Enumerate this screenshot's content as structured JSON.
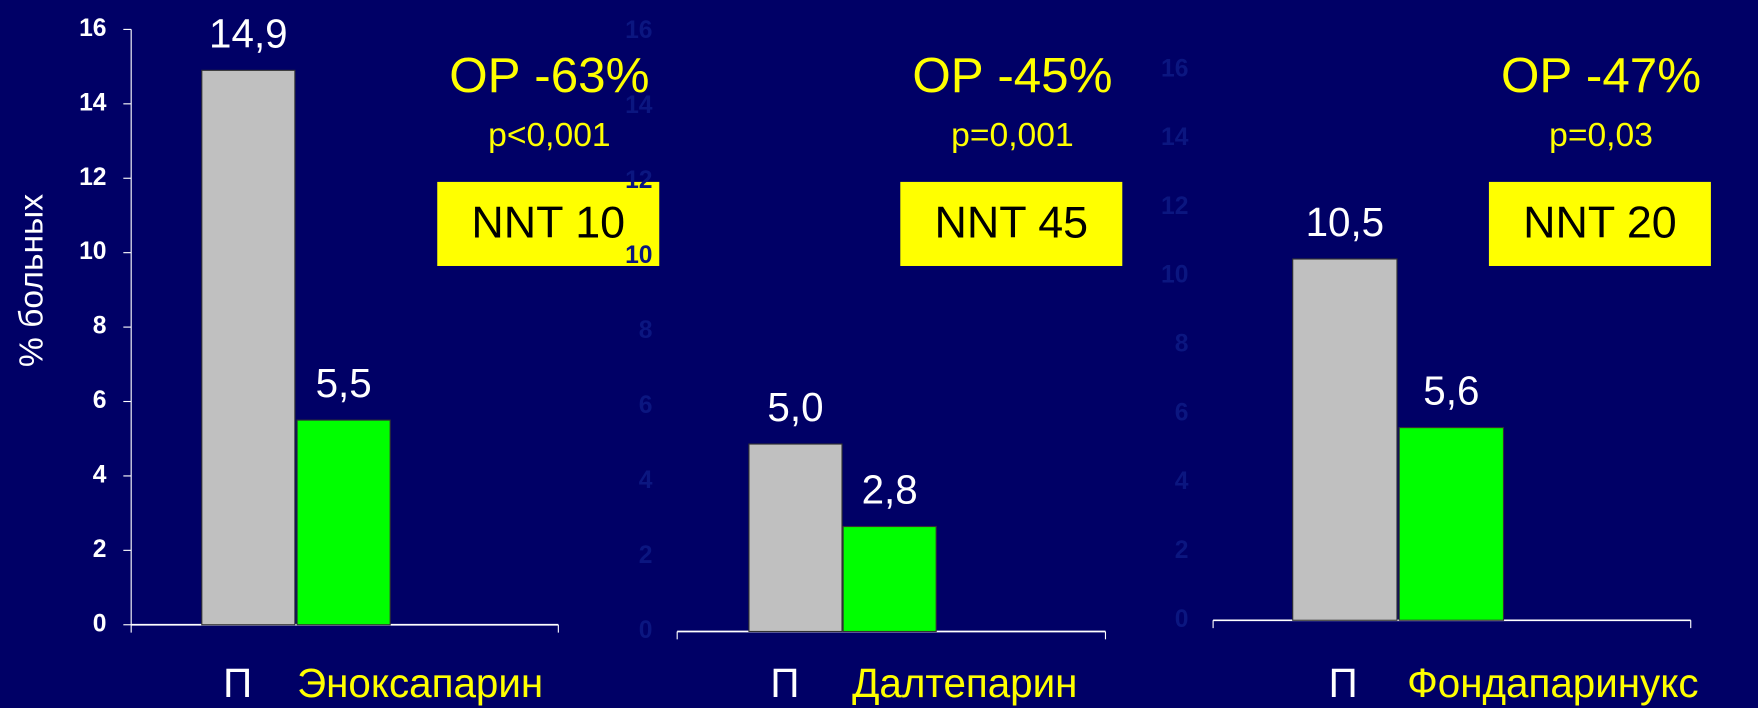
{
  "chart_data": [
    {
      "type": "bar",
      "y_label": "% больных",
      "categories": [
        "П",
        "Эноксапарин"
      ],
      "values": [
        14.9,
        5.5
      ],
      "value_labels": [
        "14,9",
        "5,5"
      ],
      "colors": [
        "#c0c0c0",
        "#00ff00"
      ],
      "ylim": [
        0,
        16
      ],
      "yticks": [
        0,
        2,
        4,
        6,
        8,
        10,
        12,
        14,
        16
      ],
      "annotations": [
        "ОР -63%",
        "p<0,001",
        "NNT 10"
      ]
    },
    {
      "type": "bar",
      "categories": [
        "П",
        "Далтепарин"
      ],
      "values": [
        5.0,
        2.8
      ],
      "value_labels": [
        "5,0",
        "2,8"
      ],
      "colors": [
        "#c0c0c0",
        "#00ff00"
      ],
      "ylim": [
        0,
        16
      ],
      "yticks": [
        0,
        2,
        4,
        6,
        8,
        10,
        12,
        14,
        16
      ],
      "annotations": [
        "ОР -45%",
        "p=0,001",
        "NNT 45"
      ]
    },
    {
      "type": "bar",
      "categories": [
        "П",
        "Фондапаринукс"
      ],
      "values": [
        10.5,
        5.6
      ],
      "value_labels": [
        "10,5",
        "5,6"
      ],
      "colors": [
        "#c0c0c0",
        "#00ff00"
      ],
      "ylim": [
        0,
        16
      ],
      "yticks": [
        0,
        2,
        4,
        6,
        8,
        10,
        12,
        14,
        16
      ],
      "annotations": [
        "ОР -47%",
        "p=0,03",
        "NNT 20"
      ]
    }
  ]
}
